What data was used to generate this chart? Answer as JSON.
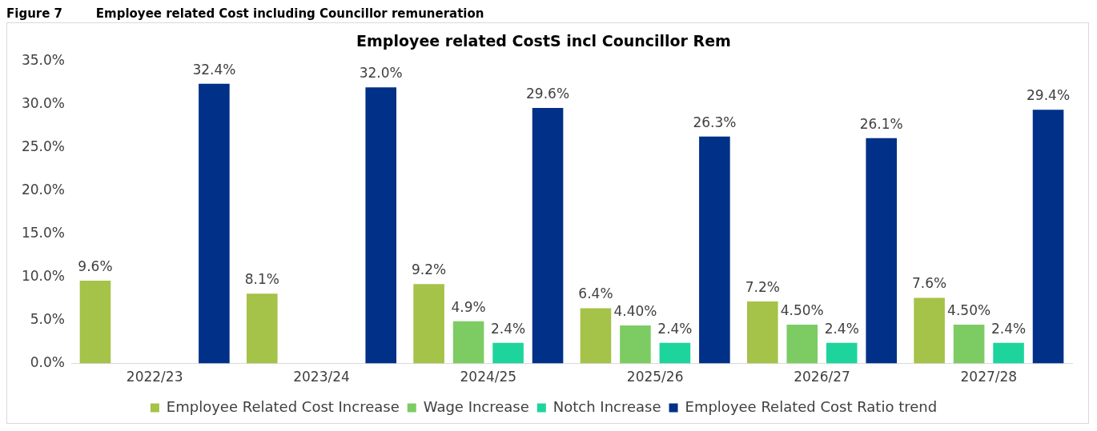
{
  "chart_data": {
    "type": "bar",
    "title": "Employee related CostS incl Councillor Rem",
    "annotations": [
      "Figure 7        Employee related Cost including Councillor remuneration"
    ],
    "categories": [
      "2022/23",
      "2023/24",
      "2024/25",
      "2025/26",
      "2026/27",
      "2027/28"
    ],
    "series": [
      {
        "name": "Employee Related Cost Increase",
        "color": "#a5c249",
        "values": [
          9.6,
          8.1,
          9.2,
          6.4,
          7.2,
          7.6
        ],
        "value_labels": [
          "9.6%",
          "8.1%",
          "9.2%",
          "6.4%",
          "7.2%",
          "7.6%"
        ]
      },
      {
        "name": "Wage Increase",
        "color": "#7ccc63",
        "values": [
          null,
          null,
          4.9,
          4.4,
          4.5,
          4.5
        ],
        "value_labels": [
          null,
          null,
          "4.9%",
          "4.40%",
          "4.50%",
          "4.50%"
        ]
      },
      {
        "name": "Notch Increase",
        "color": "#1ed49d",
        "values": [
          null,
          null,
          2.4,
          2.4,
          2.4,
          2.4
        ],
        "value_labels": [
          null,
          null,
          "2.4%",
          "2.4%",
          "2.4%",
          "2.4%"
        ]
      },
      {
        "name": "Employee Related Cost Ratio trend",
        "color": "#003087",
        "values": [
          32.4,
          32.0,
          29.6,
          26.3,
          26.1,
          29.4
        ],
        "value_labels": [
          "32.4%",
          "32.0%",
          "29.6%",
          "26.3%",
          "26.1%",
          "29.4%"
        ]
      }
    ],
    "ylim": [
      0,
      35
    ],
    "yticks": [
      {
        "value": 0,
        "label": "0.0%"
      },
      {
        "value": 5,
        "label": "5.0%"
      },
      {
        "value": 10,
        "label": "10.0%"
      },
      {
        "value": 15,
        "label": "15.0%"
      },
      {
        "value": 20,
        "label": "20.0%"
      },
      {
        "value": 25,
        "label": "25.0%"
      },
      {
        "value": 30,
        "label": "30.0%"
      },
      {
        "value": 35,
        "label": "35.0%"
      }
    ],
    "grid": false,
    "legend": "bottom"
  }
}
